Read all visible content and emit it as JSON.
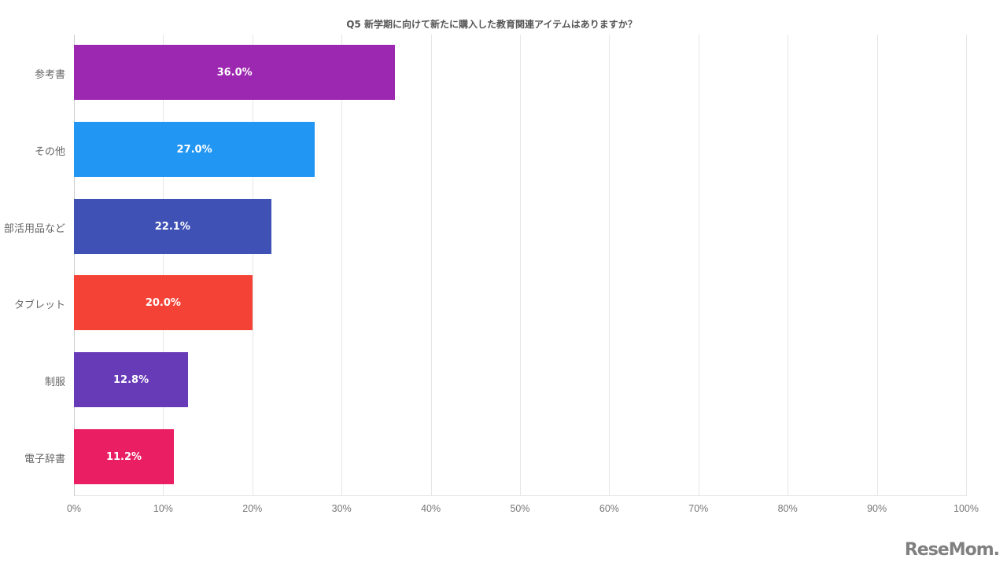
{
  "title": "Q5 新学期に向けて新たに購入した教育関連アイテムはありますか？",
  "logo": "ReseMom.",
  "chart_data": {
    "type": "bar",
    "orientation": "horizontal",
    "title": "Q5 新学期に向けて新たに購入した教育関連アイテムはありますか？",
    "categories": [
      "参考書",
      "その他",
      "部活用品など",
      "タブレット",
      "制服",
      "電子辞書"
    ],
    "values": [
      36.0,
      27.0,
      22.1,
      20.0,
      12.8,
      11.2
    ],
    "value_labels": [
      "36.0%",
      "27.0%",
      "22.1%",
      "20.0%",
      "12.8%",
      "11.2%"
    ],
    "colors": [
      "#9C27B0",
      "#2196F3",
      "#3F51B5",
      "#F44336",
      "#673AB7",
      "#E91E63"
    ],
    "xlabel": "",
    "ylabel": "",
    "xlim": [
      0,
      100
    ],
    "x_ticks": [
      "0%",
      "10%",
      "20%",
      "30%",
      "40%",
      "50%",
      "60%",
      "70%",
      "80%",
      "90%",
      "100%"
    ],
    "grid": true,
    "legend": "none"
  }
}
